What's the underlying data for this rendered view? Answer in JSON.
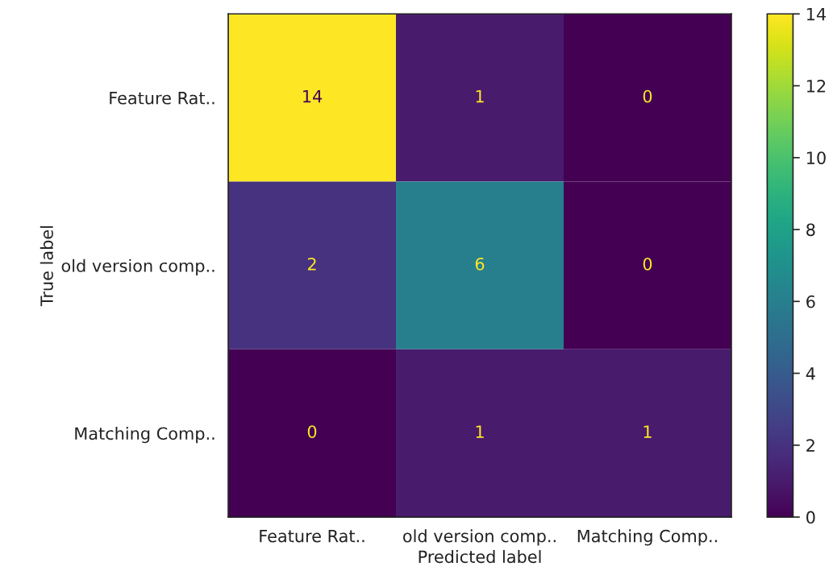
{
  "chart_data": {
    "type": "heatmap",
    "xlabel": "Predicted label",
    "ylabel": "True label",
    "categories": [
      "Feature Rat..",
      "old version comp..",
      "Matching Comp.."
    ],
    "y_categories": [
      "Feature Rat..",
      "old version comp..",
      "Matching Comp.."
    ],
    "cells": [
      [
        14,
        1,
        0
      ],
      [
        2,
        6,
        0
      ],
      [
        0,
        1,
        1
      ]
    ],
    "clim": [
      0,
      14
    ],
    "cticks": [
      0,
      2,
      4,
      6,
      8,
      10,
      12,
      14
    ],
    "data_labels": true,
    "grid": false
  }
}
